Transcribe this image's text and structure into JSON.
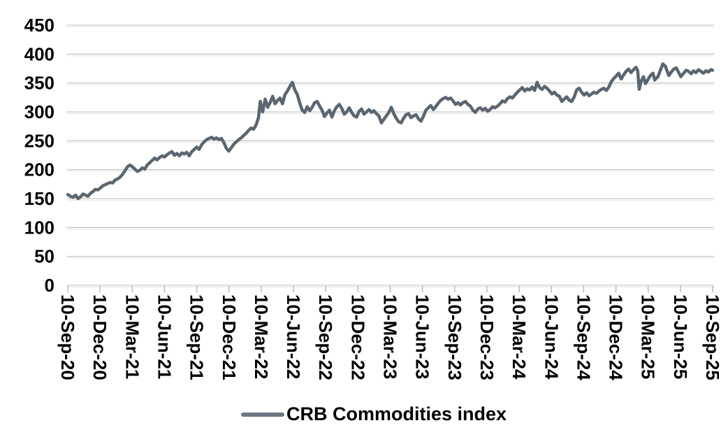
{
  "chart_data": {
    "type": "line",
    "title": "",
    "legend_position": "bottom",
    "grid": true,
    "y_axis": {
      "min": 0,
      "max": 450,
      "step": 50,
      "ticks": [
        0,
        50,
        100,
        150,
        200,
        250,
        300,
        350,
        400,
        450
      ]
    },
    "x_axis": {
      "start_date": "2020-09-10",
      "end_date": "2025-09-10",
      "labels": [
        "10-Sep-20",
        "10-Dec-20",
        "10-Mar-21",
        "10-Jun-21",
        "10-Sep-21",
        "10-Dec-21",
        "10-Mar-22",
        "10-Jun-22",
        "10-Sep-22",
        "10-Dec-22",
        "10-Mar-23",
        "10-Jun-23",
        "10-Sep-23",
        "10-Dec-23",
        "10-Mar-24",
        "10-Jun-24",
        "10-Sep-24",
        "10-Dec-24",
        "10-Mar-25",
        "10-Jun-25",
        "10-Sep-25"
      ]
    },
    "colors": {
      "line": "#5b6670",
      "legend_swatch": "#6b7682",
      "gridline": "#c9c9c9",
      "gridline_light": "#e9e9e9",
      "axis": "#b5b5b5",
      "text": "#000000"
    },
    "series": [
      {
        "name": "CRB Commodities index",
        "points": [
          [
            "2020-09-10",
            157
          ],
          [
            "2020-09-18",
            154
          ],
          [
            "2020-09-25",
            152
          ],
          [
            "2020-10-02",
            156
          ],
          [
            "2020-10-09",
            150
          ],
          [
            "2020-10-16",
            153
          ],
          [
            "2020-10-23",
            158
          ],
          [
            "2020-10-30",
            156
          ],
          [
            "2020-11-06",
            154
          ],
          [
            "2020-11-13",
            159
          ],
          [
            "2020-11-20",
            162
          ],
          [
            "2020-11-27",
            166
          ],
          [
            "2020-12-04",
            165
          ],
          [
            "2020-12-11",
            168
          ],
          [
            "2020-12-18",
            172
          ],
          [
            "2020-12-25",
            174
          ],
          [
            "2021-01-01",
            176
          ],
          [
            "2021-01-08",
            178
          ],
          [
            "2021-01-15",
            177
          ],
          [
            "2021-01-22",
            182
          ],
          [
            "2021-01-29",
            184
          ],
          [
            "2021-02-05",
            187
          ],
          [
            "2021-02-12",
            192
          ],
          [
            "2021-02-19",
            198
          ],
          [
            "2021-02-26",
            205
          ],
          [
            "2021-03-05",
            208
          ],
          [
            "2021-03-12",
            205
          ],
          [
            "2021-03-19",
            201
          ],
          [
            "2021-03-26",
            197
          ],
          [
            "2021-04-02",
            199
          ],
          [
            "2021-04-09",
            203
          ],
          [
            "2021-04-16",
            201
          ],
          [
            "2021-04-23",
            208
          ],
          [
            "2021-04-30",
            212
          ],
          [
            "2021-05-07",
            216
          ],
          [
            "2021-05-14",
            220
          ],
          [
            "2021-05-21",
            217
          ],
          [
            "2021-05-28",
            221
          ],
          [
            "2021-06-04",
            224
          ],
          [
            "2021-06-11",
            222
          ],
          [
            "2021-06-18",
            226
          ],
          [
            "2021-06-25",
            229
          ],
          [
            "2021-07-02",
            231
          ],
          [
            "2021-07-09",
            225
          ],
          [
            "2021-07-16",
            228
          ],
          [
            "2021-07-23",
            224
          ],
          [
            "2021-07-30",
            229
          ],
          [
            "2021-08-06",
            227
          ],
          [
            "2021-08-13",
            230
          ],
          [
            "2021-08-20",
            224
          ],
          [
            "2021-08-27",
            231
          ],
          [
            "2021-09-03",
            235
          ],
          [
            "2021-09-10",
            239
          ],
          [
            "2021-09-17",
            235
          ],
          [
            "2021-09-24",
            243
          ],
          [
            "2021-10-01",
            248
          ],
          [
            "2021-10-08",
            252
          ],
          [
            "2021-10-15",
            254
          ],
          [
            "2021-10-22",
            256
          ],
          [
            "2021-10-29",
            253
          ],
          [
            "2021-11-05",
            255
          ],
          [
            "2021-11-12",
            252
          ],
          [
            "2021-11-19",
            254
          ],
          [
            "2021-11-26",
            247
          ],
          [
            "2021-12-03",
            237
          ],
          [
            "2021-12-10",
            232
          ],
          [
            "2021-12-17",
            238
          ],
          [
            "2021-12-24",
            244
          ],
          [
            "2021-12-31",
            248
          ],
          [
            "2022-01-07",
            252
          ],
          [
            "2022-01-14",
            255
          ],
          [
            "2022-01-21",
            259
          ],
          [
            "2022-01-28",
            263
          ],
          [
            "2022-02-04",
            268
          ],
          [
            "2022-02-11",
            272
          ],
          [
            "2022-02-18",
            270
          ],
          [
            "2022-02-25",
            277
          ],
          [
            "2022-03-04",
            290
          ],
          [
            "2022-03-09",
            318
          ],
          [
            "2022-03-16",
            300
          ],
          [
            "2022-03-23",
            322
          ],
          [
            "2022-03-30",
            308
          ],
          [
            "2022-04-06",
            316
          ],
          [
            "2022-04-13",
            327
          ],
          [
            "2022-04-20",
            314
          ],
          [
            "2022-04-27",
            320
          ],
          [
            "2022-05-04",
            324
          ],
          [
            "2022-05-11",
            314
          ],
          [
            "2022-05-18",
            330
          ],
          [
            "2022-05-25",
            336
          ],
          [
            "2022-06-01",
            344
          ],
          [
            "2022-06-08",
            351
          ],
          [
            "2022-06-15",
            338
          ],
          [
            "2022-06-22",
            330
          ],
          [
            "2022-06-29",
            315
          ],
          [
            "2022-07-06",
            303
          ],
          [
            "2022-07-13",
            299
          ],
          [
            "2022-07-20",
            309
          ],
          [
            "2022-07-27",
            302
          ],
          [
            "2022-08-03",
            308
          ],
          [
            "2022-08-10",
            316
          ],
          [
            "2022-08-17",
            318
          ],
          [
            "2022-08-24",
            310
          ],
          [
            "2022-08-31",
            303
          ],
          [
            "2022-09-07",
            292
          ],
          [
            "2022-09-14",
            298
          ],
          [
            "2022-09-21",
            303
          ],
          [
            "2022-09-28",
            291
          ],
          [
            "2022-10-05",
            302
          ],
          [
            "2022-10-12",
            309
          ],
          [
            "2022-10-19",
            313
          ],
          [
            "2022-10-26",
            306
          ],
          [
            "2022-11-02",
            296
          ],
          [
            "2022-11-09",
            300
          ],
          [
            "2022-11-16",
            307
          ],
          [
            "2022-11-23",
            299
          ],
          [
            "2022-11-30",
            293
          ],
          [
            "2022-12-07",
            291
          ],
          [
            "2022-12-14",
            301
          ],
          [
            "2022-12-21",
            305
          ],
          [
            "2022-12-28",
            296
          ],
          [
            "2023-01-04",
            300
          ],
          [
            "2023-01-11",
            304
          ],
          [
            "2023-01-18",
            299
          ],
          [
            "2023-01-25",
            302
          ],
          [
            "2023-02-01",
            297
          ],
          [
            "2023-02-08",
            293
          ],
          [
            "2023-02-15",
            281
          ],
          [
            "2023-02-22",
            287
          ],
          [
            "2023-03-01",
            293
          ],
          [
            "2023-03-08",
            299
          ],
          [
            "2023-03-15",
            308
          ],
          [
            "2023-03-22",
            297
          ],
          [
            "2023-03-29",
            289
          ],
          [
            "2023-04-05",
            283
          ],
          [
            "2023-04-12",
            281
          ],
          [
            "2023-04-19",
            289
          ],
          [
            "2023-04-26",
            295
          ],
          [
            "2023-05-03",
            297
          ],
          [
            "2023-05-10",
            290
          ],
          [
            "2023-05-17",
            293
          ],
          [
            "2023-05-24",
            295
          ],
          [
            "2023-05-31",
            288
          ],
          [
            "2023-06-07",
            284
          ],
          [
            "2023-06-14",
            292
          ],
          [
            "2023-06-21",
            303
          ],
          [
            "2023-06-28",
            307
          ],
          [
            "2023-07-05",
            311
          ],
          [
            "2023-07-12",
            304
          ],
          [
            "2023-07-19",
            309
          ],
          [
            "2023-07-26",
            315
          ],
          [
            "2023-08-02",
            320
          ],
          [
            "2023-08-09",
            323
          ],
          [
            "2023-08-16",
            325
          ],
          [
            "2023-08-23",
            322
          ],
          [
            "2023-08-30",
            324
          ],
          [
            "2023-09-06",
            319
          ],
          [
            "2023-09-13",
            313
          ],
          [
            "2023-09-20",
            316
          ],
          [
            "2023-09-27",
            312
          ],
          [
            "2023-10-04",
            316
          ],
          [
            "2023-10-11",
            318
          ],
          [
            "2023-10-18",
            313
          ],
          [
            "2023-10-25",
            310
          ],
          [
            "2023-11-01",
            303
          ],
          [
            "2023-11-08",
            299
          ],
          [
            "2023-11-15",
            305
          ],
          [
            "2023-11-22",
            307
          ],
          [
            "2023-11-29",
            303
          ],
          [
            "2023-12-06",
            306
          ],
          [
            "2023-12-13",
            301
          ],
          [
            "2023-12-20",
            304
          ],
          [
            "2023-12-27",
            309
          ],
          [
            "2024-01-03",
            307
          ],
          [
            "2024-01-10",
            310
          ],
          [
            "2024-01-17",
            314
          ],
          [
            "2024-01-24",
            319
          ],
          [
            "2024-01-31",
            317
          ],
          [
            "2024-02-07",
            323
          ],
          [
            "2024-02-14",
            326
          ],
          [
            "2024-02-21",
            324
          ],
          [
            "2024-02-28",
            329
          ],
          [
            "2024-03-06",
            334
          ],
          [
            "2024-03-13",
            338
          ],
          [
            "2024-03-20",
            342
          ],
          [
            "2024-03-27",
            336
          ],
          [
            "2024-04-03",
            340
          ],
          [
            "2024-04-10",
            338
          ],
          [
            "2024-04-17",
            343
          ],
          [
            "2024-04-24",
            337
          ],
          [
            "2024-05-01",
            351
          ],
          [
            "2024-05-08",
            342
          ],
          [
            "2024-05-15",
            339
          ],
          [
            "2024-05-22",
            344
          ],
          [
            "2024-05-29",
            341
          ],
          [
            "2024-06-05",
            336
          ],
          [
            "2024-06-12",
            331
          ],
          [
            "2024-06-19",
            334
          ],
          [
            "2024-06-26",
            329
          ],
          [
            "2024-07-03",
            327
          ],
          [
            "2024-07-10",
            318
          ],
          [
            "2024-07-17",
            322
          ],
          [
            "2024-07-24",
            326
          ],
          [
            "2024-07-31",
            320
          ],
          [
            "2024-08-07",
            318
          ],
          [
            "2024-08-14",
            326
          ],
          [
            "2024-08-21",
            338
          ],
          [
            "2024-08-28",
            341
          ],
          [
            "2024-09-04",
            334
          ],
          [
            "2024-09-11",
            329
          ],
          [
            "2024-09-18",
            333
          ],
          [
            "2024-09-25",
            328
          ],
          [
            "2024-10-02",
            331
          ],
          [
            "2024-10-09",
            334
          ],
          [
            "2024-10-16",
            332
          ],
          [
            "2024-10-23",
            336
          ],
          [
            "2024-10-30",
            339
          ],
          [
            "2024-11-06",
            341
          ],
          [
            "2024-11-13",
            337
          ],
          [
            "2024-11-20",
            343
          ],
          [
            "2024-11-27",
            352
          ],
          [
            "2024-12-04",
            358
          ],
          [
            "2024-12-11",
            362
          ],
          [
            "2024-12-18",
            367
          ],
          [
            "2024-12-25",
            357
          ],
          [
            "2025-01-01",
            364
          ],
          [
            "2025-01-08",
            370
          ],
          [
            "2025-01-15",
            374
          ],
          [
            "2025-01-22",
            368
          ],
          [
            "2025-01-29",
            373
          ],
          [
            "2025-02-05",
            377
          ],
          [
            "2025-02-10",
            371
          ],
          [
            "2025-02-14",
            339
          ],
          [
            "2025-02-19",
            352
          ],
          [
            "2025-02-26",
            361
          ],
          [
            "2025-03-04",
            349
          ],
          [
            "2025-03-11",
            356
          ],
          [
            "2025-03-18",
            363
          ],
          [
            "2025-03-25",
            367
          ],
          [
            "2025-03-30",
            355
          ],
          [
            "2025-04-08",
            361
          ],
          [
            "2025-04-15",
            372
          ],
          [
            "2025-04-22",
            383
          ],
          [
            "2025-04-29",
            379
          ],
          [
            "2025-05-09",
            363
          ],
          [
            "2025-05-16",
            369
          ],
          [
            "2025-05-23",
            374
          ],
          [
            "2025-05-30",
            376
          ],
          [
            "2025-06-06",
            368
          ],
          [
            "2025-06-12",
            361
          ],
          [
            "2025-06-20",
            367
          ],
          [
            "2025-06-27",
            372
          ],
          [
            "2025-07-04",
            370
          ],
          [
            "2025-07-11",
            366
          ],
          [
            "2025-07-18",
            371
          ],
          [
            "2025-07-25",
            368
          ],
          [
            "2025-08-01",
            373
          ],
          [
            "2025-08-08",
            370
          ],
          [
            "2025-08-15",
            367
          ],
          [
            "2025-08-22",
            371
          ],
          [
            "2025-08-29",
            369
          ],
          [
            "2025-09-05",
            373
          ],
          [
            "2025-09-10",
            372
          ]
        ]
      }
    ]
  }
}
